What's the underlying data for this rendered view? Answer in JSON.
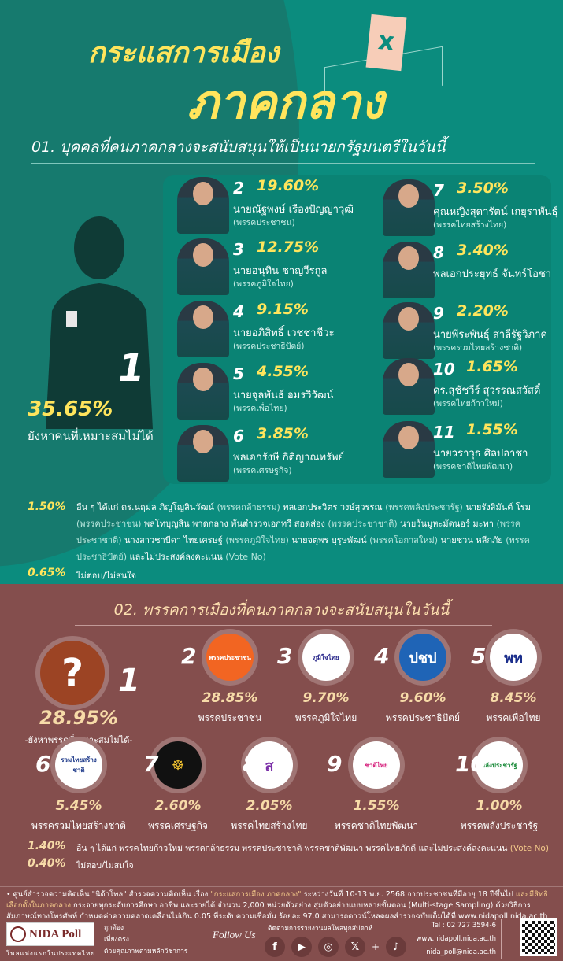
{
  "colors": {
    "section1_bg": "#0b8c7e",
    "section2_bg": "#844e4d",
    "accent_yellow": "#ffe55c",
    "accent_peach": "#f7dba8"
  },
  "title": {
    "line1": "กระแสการเมือง",
    "line2": "ภาคกลาง",
    "ballot_mark": "x"
  },
  "section1": {
    "heading": "01. บุคคลที่คนภาคกลางจะสนับสนุนให้เป็นนายกรัฐมนตรีในวันนี้",
    "top": {
      "rank": "1",
      "percent": "35.65%",
      "label": "ยังหาคนที่เหมาะสมไม่ได้"
    },
    "left": [
      {
        "rank": "2",
        "percent": "19.60%",
        "name": "นายณัฐพงษ์ เรืองปัญญาวุฒิ",
        "party": "(พรรคประชาชน)"
      },
      {
        "rank": "3",
        "percent": "12.75%",
        "name": "นายอนุทิน ชาญวีรกูล",
        "party": "(พรรคภูมิใจไทย)"
      },
      {
        "rank": "4",
        "percent": "9.15%",
        "name": "นายอภิสิทธิ์ เวชชาชีวะ",
        "party": "(พรรคประชาธิปัตย์)"
      },
      {
        "rank": "5",
        "percent": "4.55%",
        "name": "นายจุลพันธ์ อมรวิวัฒน์",
        "party": "(พรรคเพื่อไทย)"
      },
      {
        "rank": "6",
        "percent": "3.85%",
        "name": "พลเอกรังษี กิติญาณทรัพย์",
        "party": "(พรรคเศรษฐกิจ)"
      }
    ],
    "right": [
      {
        "rank": "7",
        "percent": "3.50%",
        "name": "คุณหญิงสุดารัตน์ เกยุราพันธุ์",
        "party": "(พรรคไทยสร้างไทย)"
      },
      {
        "rank": "8",
        "percent": "3.40%",
        "name": "พลเอกประยุทธ์ จันทร์โอชา",
        "party": ""
      },
      {
        "rank": "9",
        "percent": "2.20%",
        "name": "นายพีระพันธุ์ สาลีรัฐวิภาค",
        "party": "(พรรครวมไทยสร้างชาติ)"
      },
      {
        "rank": "10",
        "percent": "1.65%",
        "name": "ดร.สุชัชวีร์ สุวรรณสวัสดิ์",
        "party": "(พรรคไทยก้าวใหม่)"
      },
      {
        "rank": "11",
        "percent": "1.55%",
        "name": "นายวราวุธ ศิลปอาชา",
        "party": "(พรรคชาติไทยพัฒนา)"
      }
    ],
    "others": {
      "percent": "1.50%",
      "parts": [
        [
          "อื่น ๆ ได้แก่ ดร.นฤมล ภิญโญสินวัฒน์ ",
          ""
        ],
        [
          "(พรรคกล้าธรรม)",
          "hl"
        ],
        [
          " พลเอกประวิตร วงษ์สุวรรณ ",
          ""
        ],
        [
          "(พรรคพลังประชารัฐ)",
          "hl"
        ],
        [
          " นายรังสิมันต์ โรม ",
          ""
        ],
        [
          "(พรรคประชาชน)",
          "hl"
        ],
        [
          " พลโทบุญสิน พาดกลาง พันตำรวจเอกทวี สอดส่อง ",
          ""
        ],
        [
          "(พรรคประชาชาติ)",
          "hl"
        ],
        [
          " นายวันมูหะมัดนอร์ มะทา ",
          ""
        ],
        [
          "(พรรคประชาชาติ)",
          "hl"
        ],
        [
          " นางสาวชาบีดา ไทยเศรษฐ์ ",
          ""
        ],
        [
          "(พรรคภูมิใจไทย)",
          "hl"
        ],
        [
          " นายจตุพร บุรุษพัฒน์ ",
          ""
        ],
        [
          "(พรรคโอกาสใหม่)",
          "hl"
        ],
        [
          " นายชวน หลีกภัย ",
          ""
        ],
        [
          "(พรรคประชาธิปัตย์)",
          "hl"
        ],
        [
          " และไม่ประสงค์ลงคะแนน ",
          ""
        ],
        [
          "(Vote No)",
          "hl"
        ]
      ]
    },
    "no_answer": {
      "percent": "0.65%",
      "label": "ไม่ตอบ/ไม่สนใจ"
    }
  },
  "section2": {
    "heading": "02. พรรคการเมืองที่คนภาคกลางจะสนับสนุนในวันนี้",
    "top": {
      "rank": "1",
      "percent": "28.95%",
      "label": "-ยังหาพรรคที่เหมาะสมไม่ได้-",
      "icon": "?"
    },
    "parties": [
      {
        "rank": "2",
        "percent": "28.85%",
        "name": "พรรคประชาชน",
        "logo": "พรรคประชาชน",
        "logo_bg": "#f26522",
        "logo_fg": "#fff"
      },
      {
        "rank": "3",
        "percent": "9.70%",
        "name": "พรรคภูมิใจไทย",
        "logo": "ภูมิใจไทย",
        "logo_bg": "#fff",
        "logo_fg": "#2b2a8c"
      },
      {
        "rank": "4",
        "percent": "9.60%",
        "name": "พรรคประชาธิปัตย์",
        "logo": "ปชป",
        "logo_bg": "#1f64b6",
        "logo_fg": "#fff"
      },
      {
        "rank": "5",
        "percent": "8.45%",
        "name": "พรรคเพื่อไทย",
        "logo": "พท",
        "logo_bg": "#fff",
        "logo_fg": "#1c2f8c"
      },
      {
        "rank": "6",
        "percent": "5.45%",
        "name": "พรรครวมไทยสร้างชาติ",
        "logo": "รวมไทยสร้างชาติ",
        "logo_bg": "#fff",
        "logo_fg": "#1e3a8a"
      },
      {
        "rank": "7",
        "percent": "2.60%",
        "name": "พรรคเศรษฐกิจ",
        "logo": "☸",
        "logo_bg": "#111",
        "logo_fg": "#f2c230"
      },
      {
        "rank": "8",
        "percent": "2.05%",
        "name": "พรรคไทยสร้างไทย",
        "logo": "ส",
        "logo_bg": "#fff",
        "logo_fg": "#7b2fa8"
      },
      {
        "rank": "9",
        "percent": "1.55%",
        "name": "พรรคชาติไทยพัฒนา",
        "logo": "ชาติไทย",
        "logo_bg": "#fff",
        "logo_fg": "#d6247e"
      },
      {
        "rank": "10",
        "percent": "1.00%",
        "name": "พรรคพลังประชารัฐ",
        "logo": "พลังประชารัฐ",
        "logo_bg": "#fff",
        "logo_fg": "#1a8a3a"
      }
    ],
    "others": {
      "percent": "1.40%",
      "text": "อื่น ๆ ได้แก่ พรรคไทยก้าวใหม่ พรรคกล้าธรรม พรรคประชาชาติ พรรคชาติพัฒนา พรรคไทยภักดี และไม่ประสงค์ลงคะแนน ",
      "vote_no": "(Vote No)"
    },
    "no_answer": {
      "percent": "0.40%",
      "label": "ไม่ตอบ/ไม่สนใจ"
    }
  },
  "footnote": [
    [
      "• ศูนย์สำรวจความคิดเห็น \"นิด้าโพล\" สำรวจความคิดเห็น เรื่อง ",
      ""
    ],
    [
      "\"กระแสการเมือง ภาคกลาง\"",
      "hl"
    ],
    [
      " ระหว่างวันที่ 10-13 พ.ย. 2568 จากประชาชนที่มีอายุ 18 ปีขึ้นไป ",
      ""
    ],
    [
      "และมีสิทธิเลือกตั้งในภาคกลาง",
      "hl"
    ],
    [
      " กระจายทุกระดับการศึกษา อาชีพ และรายได้ จำนวน 2,000 หน่วยตัวอย่าง สุ่มตัวอย่างแบบหลายขั้นตอน (Multi-stage Sampling) ด้วยวิธีการสัมภาษณ์ทางโทรศัพท์ กำหนดค่าความคลาดเคลื่อนไม่เกิน 0.05 ที่ระดับความเชื่อมั่น ร้อยละ 97.0 สามารถดาวน์โหลดผลสำรวจฉบับเต็มได้ที่ www.nidapoll.nida.ac.th",
      ""
    ]
  ],
  "footer": {
    "logo": "NIDA Poll",
    "tagline": "โพลแห่งแรกในประเทศไทย",
    "motto": [
      "ถูกต้อง",
      "เที่ยงตรง",
      "ด้วยคุณภาพตามหลักวิชาการ"
    ],
    "follow": "Follow Us",
    "follow_sub": "ติดตามการรายงานผลโพลทุกสัปดาห์",
    "socials": [
      {
        "icon": "facebook-icon",
        "glyph": "f"
      },
      {
        "icon": "youtube-icon",
        "glyph": "▶"
      },
      {
        "icon": "instagram-icon",
        "glyph": "◎"
      },
      {
        "icon": "x-icon",
        "glyph": "𝕏"
      },
      {
        "icon": "tiktok-icon",
        "glyph": "♪"
      }
    ],
    "plus": "+",
    "tel": "Tel : 02 727 3594-6",
    "web": "www.nidapoll.nida.ac.th",
    "email": "nida_poll@nida.ac.th"
  }
}
